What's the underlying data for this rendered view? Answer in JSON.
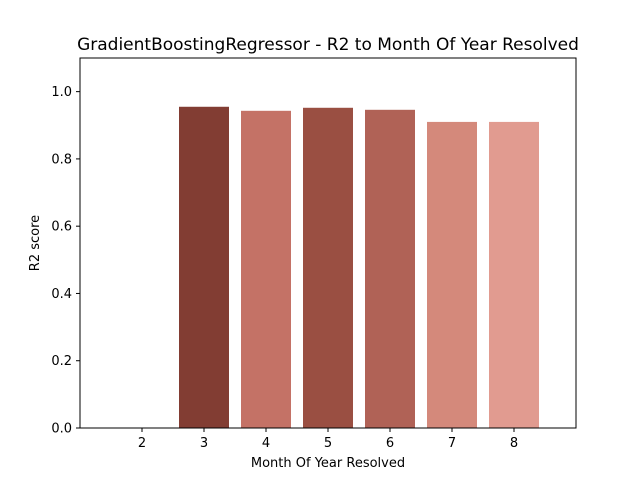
{
  "chart_data": {
    "type": "bar",
    "title": "GradientBoostingRegressor - R2 to Month Of Year Resolved",
    "xlabel": "Month Of Year Resolved",
    "ylabel": "R2 score",
    "categories": [
      "2",
      "3",
      "4",
      "5",
      "6",
      "7",
      "8"
    ],
    "values": [
      0.0,
      0.955,
      0.943,
      0.952,
      0.946,
      0.91,
      0.91
    ],
    "bar_colors": [
      "#a0524a",
      "#823d33",
      "#c47266",
      "#9a4f42",
      "#b06256",
      "#d4897b",
      "#e19b90"
    ],
    "ylim": [
      0,
      1.1
    ],
    "yticks": [
      0.0,
      0.2,
      0.4,
      0.6,
      0.8,
      1.0
    ],
    "ytick_labels": [
      "0.0",
      "0.2",
      "0.4",
      "0.6",
      "0.8",
      "1.0"
    ],
    "grid": false,
    "legend": "none"
  }
}
